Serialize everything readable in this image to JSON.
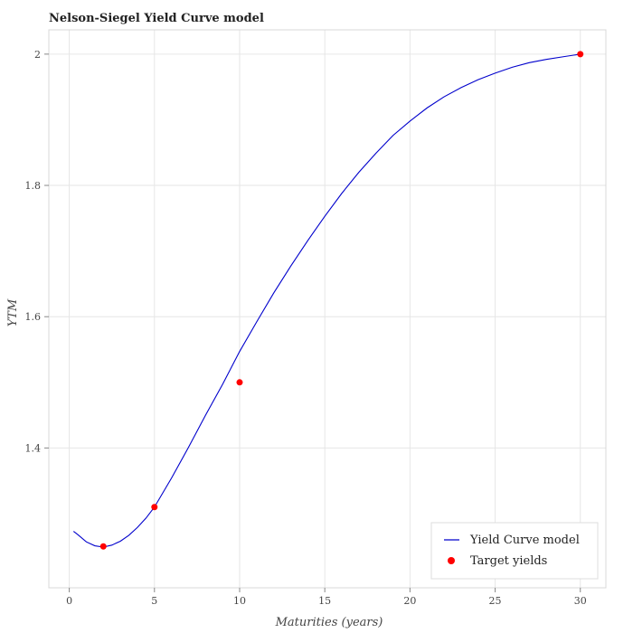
{
  "chart_data": {
    "type": "line",
    "title": "Nelson-Siegel Yield Curve model",
    "xlabel": "Maturities (years)",
    "ylabel": "YTM",
    "xlim": [
      -1.2,
      31.5
    ],
    "ylim": [
      1.187,
      2.037
    ],
    "x_ticks": [
      0,
      5,
      10,
      15,
      20,
      25,
      30
    ],
    "y_ticks": [
      1.4,
      1.6,
      1.8,
      2
    ],
    "x_tick_labels": [
      "0",
      "5",
      "10",
      "15",
      "20",
      "25",
      "30"
    ],
    "y_tick_labels": [
      "1.4",
      "1.6",
      "1.8",
      "2"
    ],
    "grid": true,
    "legend_position": "bottom-right",
    "series": [
      {
        "name": "Yield Curve model",
        "kind": "line",
        "color": "#0000cc",
        "x": [
          0.25,
          0.5,
          1,
          1.5,
          2,
          2.5,
          3,
          3.5,
          4,
          4.5,
          5,
          6,
          7,
          8,
          9,
          10,
          11,
          12,
          13,
          14,
          15,
          16,
          17,
          18,
          19,
          20,
          21,
          22,
          23,
          24,
          25,
          26,
          27,
          28,
          29,
          30
        ],
        "y": [
          1.273,
          1.268,
          1.257,
          1.251,
          1.249,
          1.252,
          1.258,
          1.267,
          1.279,
          1.293,
          1.31,
          1.354,
          1.401,
          1.45,
          1.497,
          1.547,
          1.592,
          1.636,
          1.677,
          1.716,
          1.753,
          1.788,
          1.82,
          1.849,
          1.876,
          1.898,
          1.918,
          1.935,
          1.949,
          1.961,
          1.971,
          1.98,
          1.987,
          1.992,
          1.996,
          2.0
        ]
      },
      {
        "name": "Target yields",
        "kind": "scatter",
        "color": "#ff0000",
        "x": [
          2,
          5,
          10,
          30
        ],
        "y": [
          1.25,
          1.31,
          1.5,
          2.0
        ]
      }
    ]
  }
}
